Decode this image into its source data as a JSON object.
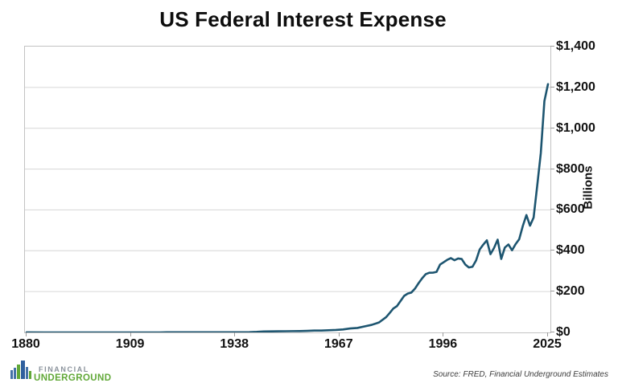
{
  "chart_data": {
    "type": "line",
    "title": "US Federal Interest Expense",
    "xlabel": "",
    "ylabel": "Billions",
    "xlim": [
      1880,
      2025
    ],
    "ylim": [
      0,
      1400
    ],
    "grid": "horizontal-only",
    "legend": "none",
    "x_ticks": [
      1880,
      1909,
      1938,
      1967,
      1996,
      2025
    ],
    "x_tick_labels": [
      "1880",
      "1909",
      "1938",
      "1967",
      "1996",
      "2025"
    ],
    "y_ticks": [
      0,
      200,
      400,
      600,
      800,
      1000,
      1200,
      1400
    ],
    "y_tick_labels": [
      "$0",
      "$200",
      "$400",
      "$600",
      "$800",
      "$1,000",
      "$1,200",
      "$1,400"
    ],
    "series": [
      {
        "name": "US Federal Interest Expense ($ Billions)",
        "points": [
          [
            1880,
            0.1
          ],
          [
            1885,
            0.05
          ],
          [
            1890,
            0.04
          ],
          [
            1895,
            0.03
          ],
          [
            1900,
            0.04
          ],
          [
            1905,
            0.02
          ],
          [
            1910,
            0.02
          ],
          [
            1915,
            0.02
          ],
          [
            1917,
            0.02
          ],
          [
            1918,
            0.19
          ],
          [
            1919,
            0.62
          ],
          [
            1920,
            1.02
          ],
          [
            1922,
            0.99
          ],
          [
            1924,
            0.94
          ],
          [
            1926,
            0.79
          ],
          [
            1928,
            0.73
          ],
          [
            1930,
            0.66
          ],
          [
            1932,
            0.6
          ],
          [
            1934,
            0.76
          ],
          [
            1936,
            0.75
          ],
          [
            1938,
            0.93
          ],
          [
            1940,
            1.04
          ],
          [
            1942,
            1.26
          ],
          [
            1944,
            2.61
          ],
          [
            1946,
            4.72
          ],
          [
            1948,
            5.21
          ],
          [
            1950,
            5.75
          ],
          [
            1952,
            5.93
          ],
          [
            1954,
            6.38
          ],
          [
            1956,
            6.79
          ],
          [
            1958,
            7.69
          ],
          [
            1960,
            9.18
          ],
          [
            1962,
            9.12
          ],
          [
            1964,
            10.67
          ],
          [
            1966,
            12.01
          ],
          [
            1968,
            14.57
          ],
          [
            1970,
            19.3
          ],
          [
            1972,
            21.85
          ],
          [
            1974,
            29.32
          ],
          [
            1976,
            37.08
          ],
          [
            1978,
            48.69
          ],
          [
            1980,
            74.86
          ],
          [
            1981,
            95.54
          ],
          [
            1982,
            117.22
          ],
          [
            1983,
            128.81
          ],
          [
            1984,
            153.83
          ],
          [
            1985,
            178.95
          ],
          [
            1986,
            190.15
          ],
          [
            1987,
            195.39
          ],
          [
            1988,
            214.15
          ],
          [
            1989,
            240.86
          ],
          [
            1990,
            264.85
          ],
          [
            1991,
            285.46
          ],
          [
            1992,
            292.33
          ],
          [
            1993,
            292.5
          ],
          [
            1994,
            296.28
          ],
          [
            1995,
            332.41
          ],
          [
            1996,
            343.96
          ],
          [
            1997,
            355.8
          ],
          [
            1998,
            363.82
          ],
          [
            1999,
            353.51
          ],
          [
            2000,
            361.99
          ],
          [
            2001,
            359.51
          ],
          [
            2002,
            332.54
          ],
          [
            2003,
            318.15
          ],
          [
            2004,
            321.57
          ],
          [
            2005,
            352.35
          ],
          [
            2006,
            405.87
          ],
          [
            2007,
            429.98
          ],
          [
            2008,
            451.15
          ],
          [
            2009,
            383.07
          ],
          [
            2010,
            413.95
          ],
          [
            2011,
            454.39
          ],
          [
            2012,
            359.8
          ],
          [
            2013,
            415.69
          ],
          [
            2014,
            430.81
          ],
          [
            2015,
            402.44
          ],
          [
            2016,
            432.65
          ],
          [
            2017,
            456.82
          ],
          [
            2018,
            521.56
          ],
          [
            2019,
            574.59
          ],
          [
            2020,
            522.77
          ],
          [
            2021,
            562.39
          ],
          [
            2022,
            717.62
          ],
          [
            2023,
            878
          ],
          [
            2024,
            1133
          ],
          [
            2025,
            1216
          ]
        ]
      }
    ]
  },
  "footer": {
    "source": "Source: FRED, Financial Underground Estimates",
    "logo": {
      "line1": "FINANCIAL",
      "line2": "UNDERGROUND"
    }
  },
  "colors": {
    "line": "#1d5570",
    "gridline": "#d6d6d6",
    "plot_border": "#c3c3c3",
    "tick": "#9b9b9b",
    "title_text": "#0d0d0d",
    "logo_gray": "#8a929b",
    "logo_green": "#61a838",
    "logo_blue": "#4472a8",
    "logo_blue_dark": "#2f5f9e"
  }
}
